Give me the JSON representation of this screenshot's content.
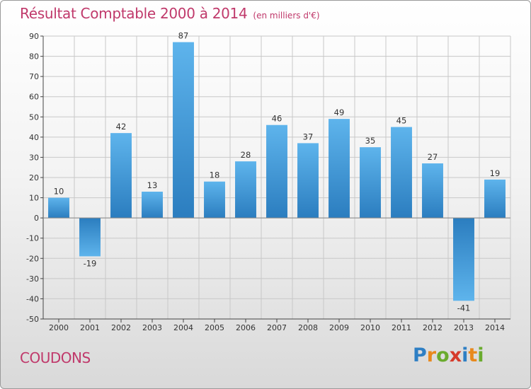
{
  "header": {
    "title": "Résultat Comptable 2000 à 2014",
    "subtitle": "(en milliers d'€)"
  },
  "footer": {
    "commune": "COUDONS",
    "brand": [
      "P",
      "r",
      "o",
      "x",
      "i",
      "t",
      "i"
    ],
    "brand_colors": [
      "#2e7fc4",
      "#e8891d",
      "#6aab2e",
      "#d63a2a",
      "#2e7fc4",
      "#e8891d",
      "#6aab2e"
    ]
  },
  "colors": {
    "bar_light": "#5eb4ec",
    "bar_dark": "#2b7dbf",
    "grid": "#c8c8c8",
    "axis": "#444444",
    "accent": "#c0396b"
  },
  "chart_data": {
    "type": "bar",
    "title": "Résultat Comptable 2000 à 2014",
    "subtitle": "(en milliers d'€)",
    "categories": [
      "2000",
      "2001",
      "2002",
      "2003",
      "2004",
      "2005",
      "2006",
      "2007",
      "2008",
      "2009",
      "2010",
      "2011",
      "2012",
      "2013",
      "2014"
    ],
    "values": [
      10,
      -19,
      42,
      13,
      87,
      18,
      28,
      46,
      37,
      49,
      35,
      45,
      27,
      -41,
      19
    ],
    "data_labels": [
      "10",
      "-19",
      "42",
      "13",
      "87",
      "18",
      "28",
      "46",
      "37",
      "49",
      "35",
      "45",
      "27",
      "-41",
      "19"
    ],
    "xlabel": "",
    "ylabel": "",
    "ylim": [
      -50,
      90
    ],
    "yticks": [
      -50,
      -40,
      -30,
      -20,
      -10,
      0,
      10,
      20,
      30,
      40,
      50,
      60,
      70,
      80,
      90
    ],
    "ytick_labels": [
      "-50",
      "-40",
      "-30",
      "-20",
      "-10",
      "0",
      "10",
      "20",
      "30",
      "40",
      "50",
      "60",
      "70",
      "80",
      "90"
    ],
    "grid": true,
    "legend": "none"
  }
}
